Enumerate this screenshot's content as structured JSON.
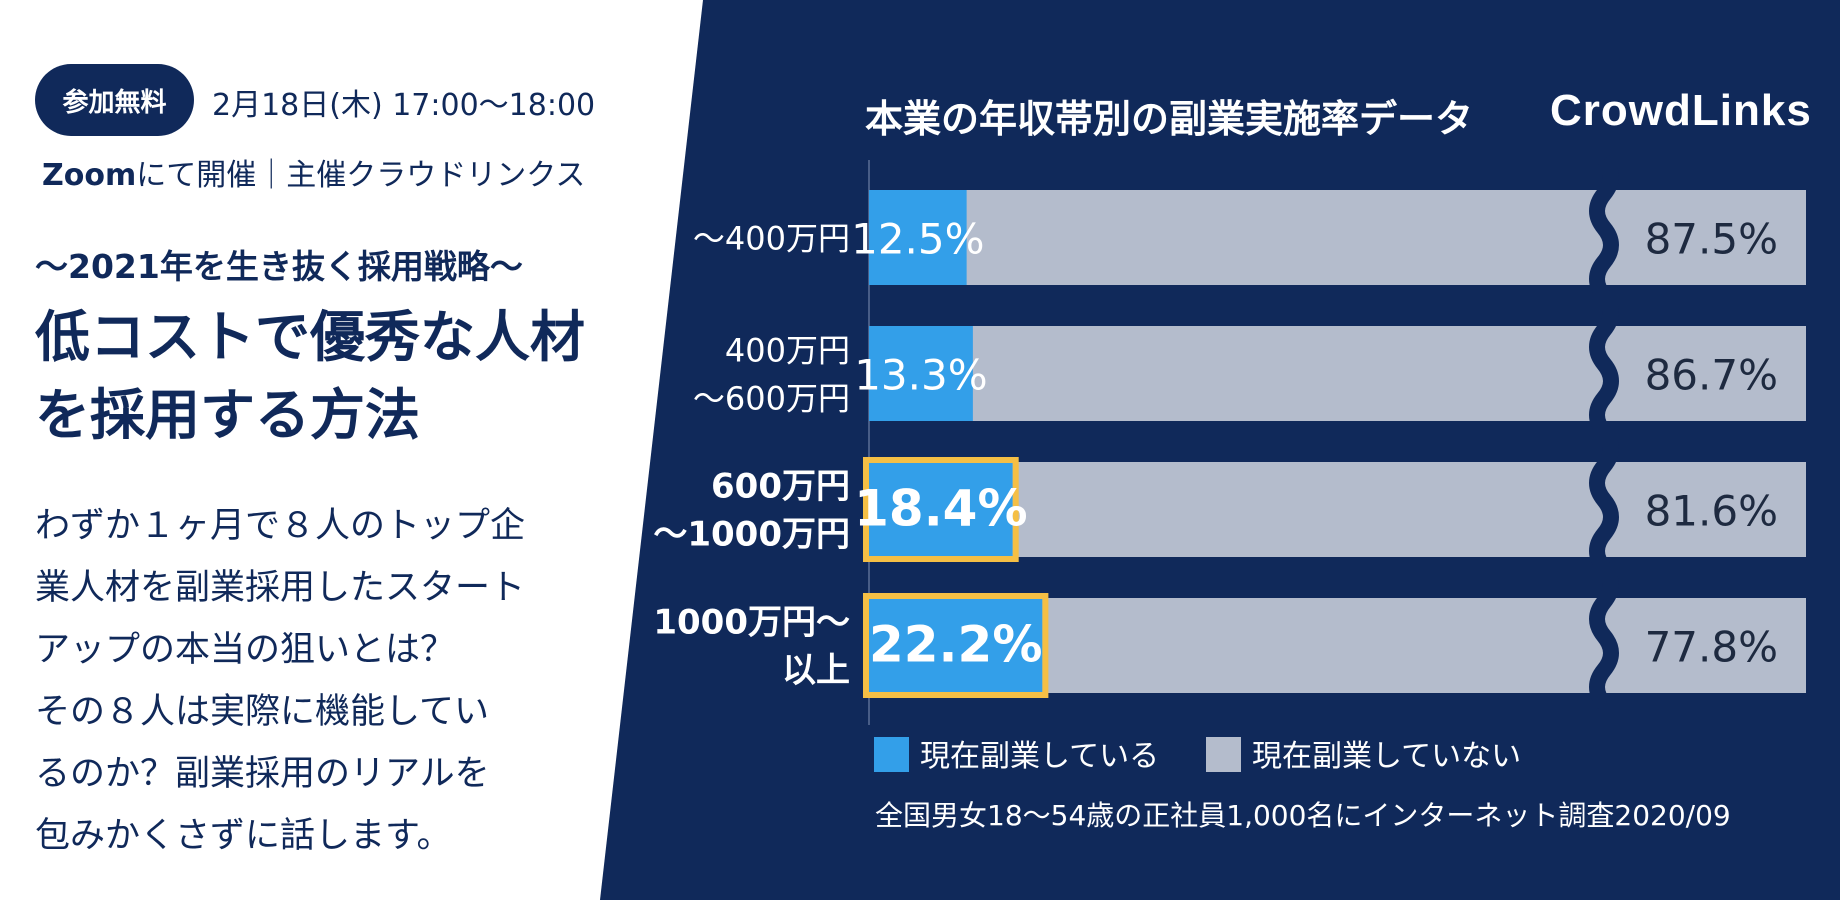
{
  "event": {
    "badge": "参加無料",
    "datetime": "2月18日(木) 17:00〜18:00",
    "venue_bold": "Zoom",
    "venue_rest": "にて開催｜主催クラウドリンクス",
    "subtitle": "〜2021年を生き抜く採用戦略〜",
    "headline": [
      "低コストで優秀な人材",
      "を採用する方法"
    ],
    "body": [
      "わずか１ヶ月で８人のトップ企",
      "業人材を副業採用したスタート",
      "アップの本当の狙いとは？",
      "その８人は実際に機能してい",
      "るのか？副業採用のリアルを",
      "包みかくさずに話します。"
    ]
  },
  "brand": {
    "logo": "CrowdLinks"
  },
  "colors": {
    "navy": "#10295a",
    "blue": "#339fe9",
    "gray": "#b4bccc",
    "highlight": "#f5bf45",
    "white": "#ffffff"
  },
  "chart_data": {
    "type": "bar",
    "stacked": true,
    "orientation": "horizontal",
    "title": "本業の年収帯別の副業実施率データ",
    "categories": [
      {
        "lines": [
          "〜400万円"
        ],
        "bold": false
      },
      {
        "lines": [
          "400万円",
          "〜600万円"
        ],
        "bold": false
      },
      {
        "lines": [
          "600万円",
          "〜1000万円"
        ],
        "bold": true
      },
      {
        "lines": [
          "1000万円〜",
          "以上"
        ],
        "bold": true
      }
    ],
    "series": [
      {
        "name": "現在副業している",
        "values": [
          12.5,
          13.3,
          18.4,
          22.2
        ]
      },
      {
        "name": "現在副業していない",
        "values": [
          87.5,
          86.7,
          81.6,
          77.8
        ]
      }
    ],
    "value_labels": [
      [
        "12.5%",
        "13.3%",
        "18.4%",
        "22.2%"
      ],
      [
        "87.5%",
        "86.7%",
        "81.6%",
        "77.8%"
      ]
    ],
    "highlighted": [
      false,
      false,
      true,
      true
    ],
    "axis_break": true,
    "xlim": [
      0,
      100
    ],
    "legend_position": "bottom-left",
    "note": "全国男女18〜54歳の正社員1,000名にインターネット調査2020/09"
  }
}
